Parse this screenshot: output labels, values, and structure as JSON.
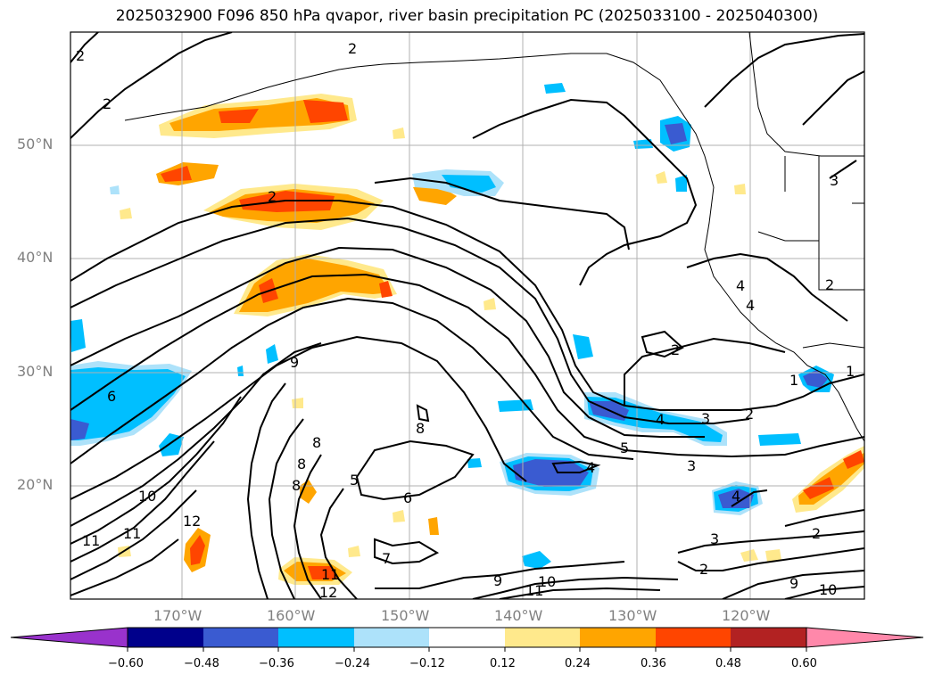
{
  "title": "2025032900 F096 850 hPa qvapor, river basin precipitation PC (2025033100 - 2025040300)",
  "latitude_labels": [
    "50°N",
    "40°N",
    "30°N",
    "20°N"
  ],
  "longitude_labels": [
    "170°W",
    "160°W",
    "150°W",
    "140°W",
    "130°W",
    "120°W"
  ],
  "colorbar": {
    "ticks": [
      "−0.60",
      "−0.48",
      "−0.36",
      "−0.24",
      "−0.12",
      "0.12",
      "0.24",
      "0.36",
      "0.48",
      "0.60"
    ],
    "colors": [
      "#9932cc",
      "#00008b",
      "#3a5bd1",
      "#00bfff",
      "#ade2fa",
      "#ffffff",
      "#ffe98c",
      "#ffa500",
      "#ff4500",
      "#b22222",
      "#ff88aa"
    ]
  },
  "contour_labels": [
    "2",
    "2",
    "2",
    "2",
    "3",
    "2",
    "2",
    "4",
    "4",
    "1",
    "6",
    "9",
    "8",
    "8",
    "8",
    "8",
    "5",
    "6",
    "7",
    "4",
    "4",
    "3",
    "2",
    "5",
    "3",
    "4",
    "1",
    "10",
    "11",
    "11",
    "12",
    "11",
    "12",
    "9",
    "11",
    "10",
    "3",
    "2",
    "2",
    "9",
    "10"
  ]
}
